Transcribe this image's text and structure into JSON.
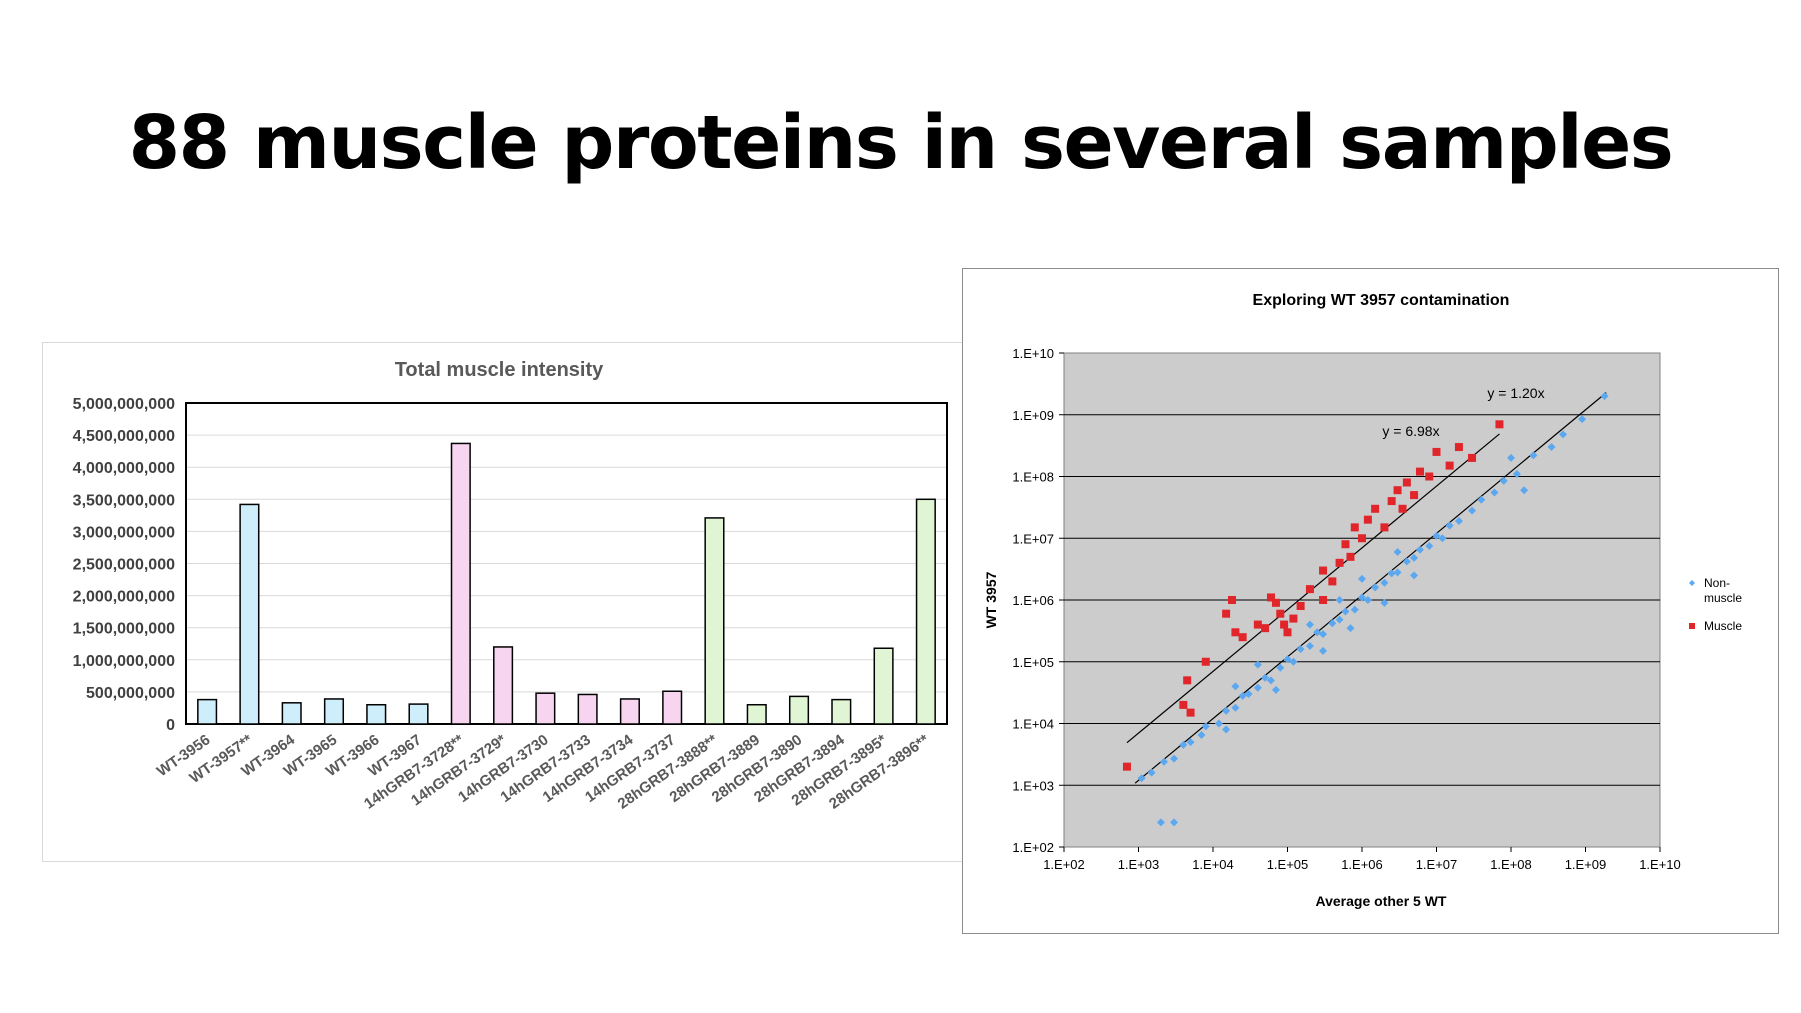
{
  "slide": {
    "title": "88 muscle proteins in several samples"
  },
  "chart_data": [
    {
      "type": "bar",
      "title": "Total muscle intensity",
      "xlabel": "",
      "ylabel": "",
      "ylim": [
        0,
        5000000000
      ],
      "yticks": [
        "0",
        "500,000,000",
        "1,000,000,000",
        "1,500,000,000",
        "2,000,000,000",
        "2,500,000,000",
        "3,000,000,000",
        "3,500,000,000",
        "4,000,000,000",
        "4,500,000,000",
        "5,000,000,000"
      ],
      "grid": true,
      "categories": [
        "WT-3956",
        "WT-3957**",
        "WT-3964",
        "WT-3965",
        "WT-3966",
        "WT-3967",
        "14hGRB7-3728**",
        "14hGRB7-3729*",
        "14hGRB7-3730",
        "14hGRB7-3733",
        "14hGRB7-3734",
        "14hGRB7-3737",
        "28hGRB7-3888**",
        "28hGRB7-3889",
        "28hGRB7-3890",
        "28hGRB7-3894",
        "28hGRB7-3895*",
        "28hGRB7-3896**"
      ],
      "values": [
        380000000,
        3420000000,
        330000000,
        390000000,
        300000000,
        310000000,
        4370000000,
        1200000000,
        480000000,
        460000000,
        390000000,
        510000000,
        3210000000,
        300000000,
        430000000,
        380000000,
        1180000000,
        3500000000
      ],
      "group_colors": [
        "#cdeefa",
        "#cdeefa",
        "#cdeefa",
        "#cdeefa",
        "#cdeefa",
        "#cdeefa",
        "#f7d4f0",
        "#f7d4f0",
        "#f7d4f0",
        "#f7d4f0",
        "#f7d4f0",
        "#f7d4f0",
        "#dff5d3",
        "#dff5d3",
        "#dff5d3",
        "#dff5d3",
        "#dff5d3",
        "#dff5d3"
      ]
    },
    {
      "type": "scatter",
      "title": "Exploring WT 3957 contamination",
      "xlabel": "Average other 5 WT",
      "ylabel": "WT 3957",
      "log_scale": true,
      "xlim": [
        100,
        10000000000
      ],
      "ylim": [
        100,
        10000000000
      ],
      "xticks": [
        "1.E+02",
        "1.E+03",
        "1.E+04",
        "1.E+05",
        "1.E+06",
        "1.E+07",
        "1.E+08",
        "1.E+09",
        "1.E+10"
      ],
      "yticks": [
        "1.E+02",
        "1.E+03",
        "1.E+04",
        "1.E+05",
        "1.E+06",
        "1.E+07",
        "1.E+08",
        "1.E+09",
        "1.E+10"
      ],
      "background": "#cccccc",
      "legend_position": "right",
      "series": [
        {
          "name": "Non-muscle",
          "marker": "diamond",
          "color": "#5ca8f0",
          "points": [
            [
              1100,
              1300
            ],
            [
              1500,
              1600
            ],
            [
              2200,
              2400
            ],
            [
              3000,
              2700
            ],
            [
              4000,
              4500
            ],
            [
              5000,
              5000
            ],
            [
              7000,
              6500
            ],
            [
              8000,
              9000
            ],
            [
              12000,
              10000
            ],
            [
              15000,
              16000
            ],
            [
              20000,
              18000
            ],
            [
              25000,
              28000
            ],
            [
              30000,
              30000
            ],
            [
              40000,
              38000
            ],
            [
              50000,
              55000
            ],
            [
              60000,
              50000
            ],
            [
              80000,
              80000
            ],
            [
              100000,
              110000
            ],
            [
              120000,
              100000
            ],
            [
              150000,
              160000
            ],
            [
              200000,
              180000
            ],
            [
              250000,
              300000
            ],
            [
              300000,
              280000
            ],
            [
              400000,
              420000
            ],
            [
              500000,
              480000
            ],
            [
              600000,
              650000
            ],
            [
              800000,
              700000
            ],
            [
              1000000,
              1100000
            ],
            [
              1200000,
              1000000
            ],
            [
              1500000,
              1600000
            ],
            [
              2000000,
              1900000
            ],
            [
              2500000,
              2700000
            ],
            [
              3000000,
              2800000
            ],
            [
              4000000,
              4200000
            ],
            [
              5000000,
              4800000
            ],
            [
              6000000,
              6500000
            ],
            [
              8000000,
              7500000
            ],
            [
              10000000,
              11000000
            ],
            [
              12000000,
              10000000
            ],
            [
              15000000,
              16000000
            ],
            [
              20000000,
              19000000
            ],
            [
              30000000,
              28000000
            ],
            [
              40000000,
              42000000
            ],
            [
              60000000,
              55000000
            ],
            [
              80000000,
              85000000
            ],
            [
              120000000,
              110000000
            ],
            [
              200000000,
              220000000
            ],
            [
              350000000,
              300000000
            ],
            [
              500000000,
              480000000
            ],
            [
              900000000,
              850000000
            ],
            [
              1800000000,
              2000000000
            ],
            [
              200000,
              400000
            ],
            [
              300000,
              150000
            ],
            [
              500000,
              1000000
            ],
            [
              700000,
              350000
            ],
            [
              1000000,
              2200000
            ],
            [
              2000000,
              900000
            ],
            [
              3000000,
              6000000
            ],
            [
              5000000,
              2500000
            ],
            [
              40000,
              90000
            ],
            [
              70000,
              35000
            ],
            [
              20000,
              40000
            ],
            [
              15000,
              8000
            ],
            [
              2000,
              250
            ],
            [
              3000,
              250
            ],
            [
              100000000,
              200000000
            ],
            [
              150000000,
              60000000
            ]
          ]
        },
        {
          "name": "Muscle",
          "marker": "square",
          "color": "#e0262a",
          "points": [
            [
              700,
              2000
            ],
            [
              4000,
              20000
            ],
            [
              5000,
              15000
            ],
            [
              4500,
              50000
            ],
            [
              8000,
              100000
            ],
            [
              15000,
              600000
            ],
            [
              18000,
              1000000
            ],
            [
              20000,
              300000
            ],
            [
              25000,
              250000
            ],
            [
              40000,
              400000
            ],
            [
              50000,
              350000
            ],
            [
              60000,
              1100000
            ],
            [
              70000,
              900000
            ],
            [
              80000,
              600000
            ],
            [
              100000,
              300000
            ],
            [
              120000,
              500000
            ],
            [
              150000,
              800000
            ],
            [
              200000,
              1500000
            ],
            [
              300000,
              3000000
            ],
            [
              400000,
              2000000
            ],
            [
              500000,
              4000000
            ],
            [
              600000,
              8000000
            ],
            [
              700000,
              5000000
            ],
            [
              800000,
              15000000
            ],
            [
              1000000,
              10000000
            ],
            [
              1200000,
              20000000
            ],
            [
              1500000,
              30000000
            ],
            [
              2000000,
              15000000
            ],
            [
              2500000,
              40000000
            ],
            [
              3000000,
              60000000
            ],
            [
              3500000,
              30000000
            ],
            [
              4000000,
              80000000
            ],
            [
              5000000,
              50000000
            ],
            [
              6000000,
              120000000
            ],
            [
              8000000,
              100000000
            ],
            [
              10000000,
              250000000
            ],
            [
              15000000,
              150000000
            ],
            [
              20000000,
              300000000
            ],
            [
              30000000,
              200000000
            ],
            [
              70000000,
              700000000
            ],
            [
              90000,
              400000
            ],
            [
              300000,
              1000000
            ]
          ]
        }
      ],
      "trendlines": [
        {
          "label": "y = 6.98x",
          "slope": 6.98,
          "x_range": [
            700,
            70000000
          ]
        },
        {
          "label": "y = 1.20x",
          "slope": 1.2,
          "x_range": [
            900,
            1900000000
          ]
        }
      ]
    }
  ]
}
